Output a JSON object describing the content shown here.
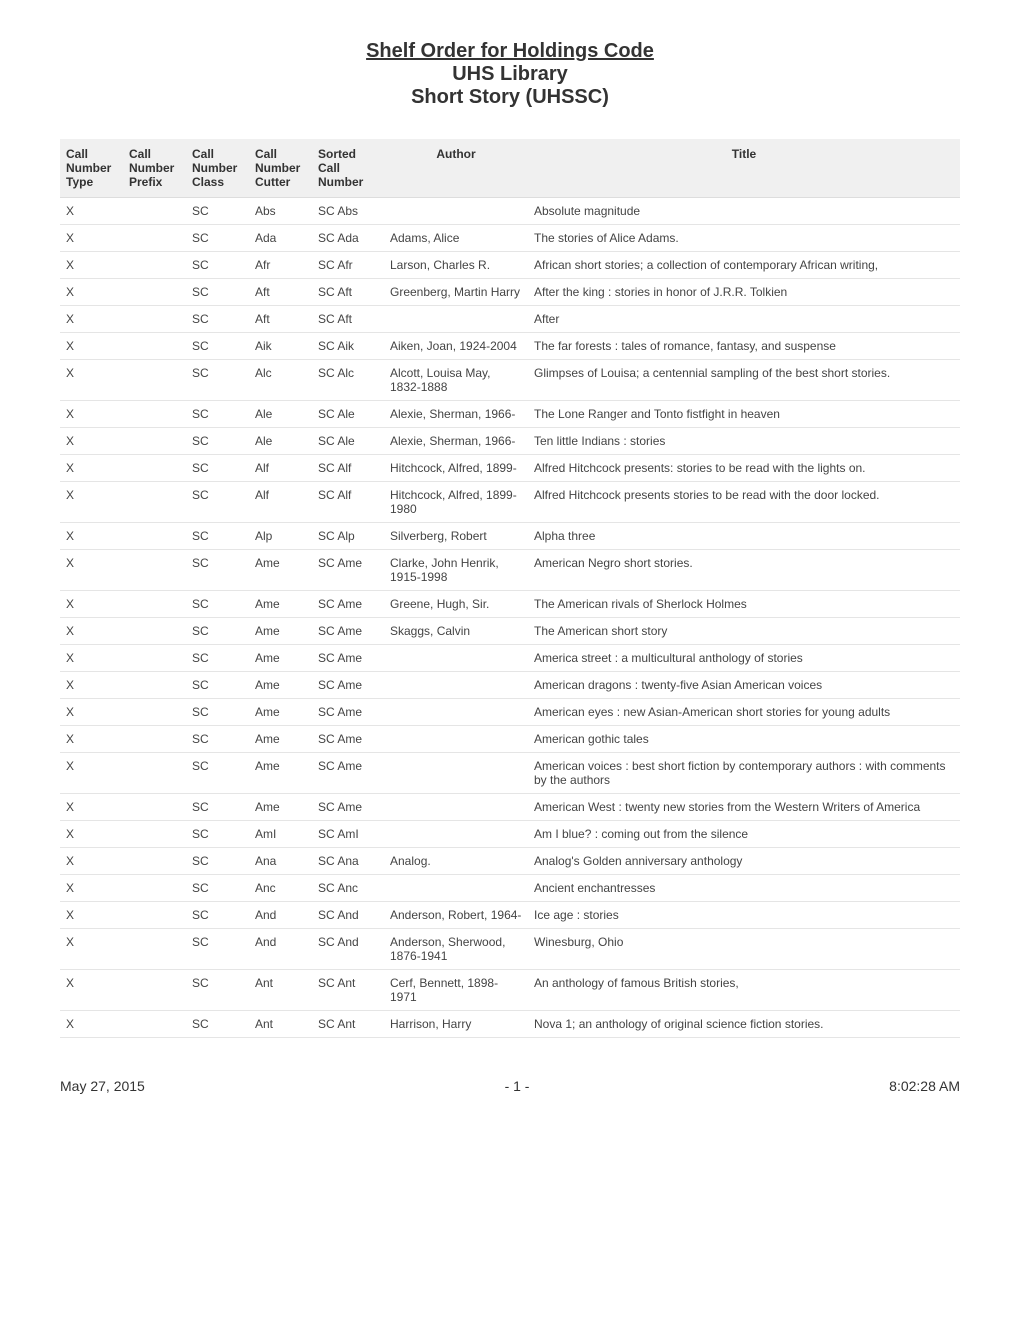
{
  "header": {
    "title": "Shelf Order for Holdings Code",
    "sub1": "UHS Library",
    "sub2": "Short Story (UHSSC)"
  },
  "columns": [
    "Call Number Type",
    "Call Number Prefix",
    "Call Number Class",
    "Call Number Cutter",
    "Sorted Call Number",
    "Author",
    "Title"
  ],
  "rows": [
    [
      "X",
      "",
      "SC",
      "Abs",
      "SC Abs",
      "",
      "Absolute magnitude"
    ],
    [
      "X",
      "",
      "SC",
      "Ada",
      "SC Ada",
      "Adams, Alice",
      "The stories of Alice Adams."
    ],
    [
      "X",
      "",
      "SC",
      "Afr",
      "SC Afr",
      "Larson, Charles R.",
      "African short stories; a collection of contemporary African writing,"
    ],
    [
      "X",
      "",
      "SC",
      "Aft",
      "SC Aft",
      "Greenberg, Martin Harry",
      "After the king : stories in honor of J.R.R. Tolkien"
    ],
    [
      "X",
      "",
      "SC",
      "Aft",
      "SC Aft",
      "",
      "After"
    ],
    [
      "X",
      "",
      "SC",
      "Aik",
      "SC Aik",
      "Aiken, Joan, 1924-2004",
      "The far forests : tales of romance, fantasy, and suspense"
    ],
    [
      "X",
      "",
      "SC",
      "Alc",
      "SC Alc",
      "Alcott, Louisa May, 1832-1888",
      "Glimpses of Louisa; a centennial sampling of the best short stories."
    ],
    [
      "X",
      "",
      "SC",
      "Ale",
      "SC Ale",
      "Alexie, Sherman, 1966-",
      "The Lone Ranger and Tonto fistfight in heaven"
    ],
    [
      "X",
      "",
      "SC",
      "Ale",
      "SC Ale",
      "Alexie, Sherman, 1966-",
      "Ten little Indians : stories"
    ],
    [
      "X",
      "",
      "SC",
      "Alf",
      "SC Alf",
      "Hitchcock, Alfred, 1899-",
      "Alfred Hitchcock presents: stories to be read with the lights on."
    ],
    [
      "X",
      "",
      "SC",
      "Alf",
      "SC Alf",
      "Hitchcock, Alfred, 1899-1980",
      "Alfred Hitchcock presents stories to be read with the door locked."
    ],
    [
      "X",
      "",
      "SC",
      "Alp",
      "SC Alp",
      "Silverberg, Robert",
      "Alpha three"
    ],
    [
      "X",
      "",
      "SC",
      "Ame",
      "SC Ame",
      "Clarke, John Henrik, 1915-1998",
      "American Negro short stories."
    ],
    [
      "X",
      "",
      "SC",
      "Ame",
      "SC Ame",
      "Greene, Hugh, Sir.",
      "The American rivals of Sherlock Holmes"
    ],
    [
      "X",
      "",
      "SC",
      "Ame",
      "SC Ame",
      "Skaggs, Calvin",
      "The American short story"
    ],
    [
      "X",
      "",
      "SC",
      "Ame",
      "SC Ame",
      "",
      "America street : a multicultural anthology of stories"
    ],
    [
      "X",
      "",
      "SC",
      "Ame",
      "SC Ame",
      "",
      "American dragons : twenty-five Asian American voices"
    ],
    [
      "X",
      "",
      "SC",
      "Ame",
      "SC Ame",
      "",
      "American eyes : new Asian-American short stories for young adults"
    ],
    [
      "X",
      "",
      "SC",
      "Ame",
      "SC Ame",
      "",
      "American gothic tales"
    ],
    [
      "X",
      "",
      "SC",
      "Ame",
      "SC Ame",
      "",
      "American voices : best short fiction by contemporary authors : with comments by the authors"
    ],
    [
      "X",
      "",
      "SC",
      "Ame",
      "SC Ame",
      "",
      "American West : twenty new stories from the Western Writers of America"
    ],
    [
      "X",
      "",
      "SC",
      "AmI",
      "SC AmI",
      "",
      "Am I blue? : coming out from the silence"
    ],
    [
      "X",
      "",
      "SC",
      "Ana",
      "SC Ana",
      "Analog.",
      "Analog's Golden anniversary anthology"
    ],
    [
      "X",
      "",
      "SC",
      "Anc",
      "SC Anc",
      "",
      "Ancient enchantresses"
    ],
    [
      "X",
      "",
      "SC",
      "And",
      "SC And",
      "Anderson, Robert, 1964-",
      "Ice age : stories"
    ],
    [
      "X",
      "",
      "SC",
      "And",
      "SC And",
      "Anderson, Sherwood, 1876-1941",
      "Winesburg, Ohio"
    ],
    [
      "X",
      "",
      "SC",
      "Ant",
      "SC Ant",
      "Cerf, Bennett, 1898-1971",
      "An anthology of famous British stories,"
    ],
    [
      "X",
      "",
      "SC",
      "Ant",
      "SC Ant",
      "Harrison, Harry",
      "Nova 1; an anthology of original science fiction stories."
    ]
  ],
  "footer": {
    "date": "May 27, 2015",
    "page": "- 1 -",
    "time": "8:02:28 AM"
  }
}
